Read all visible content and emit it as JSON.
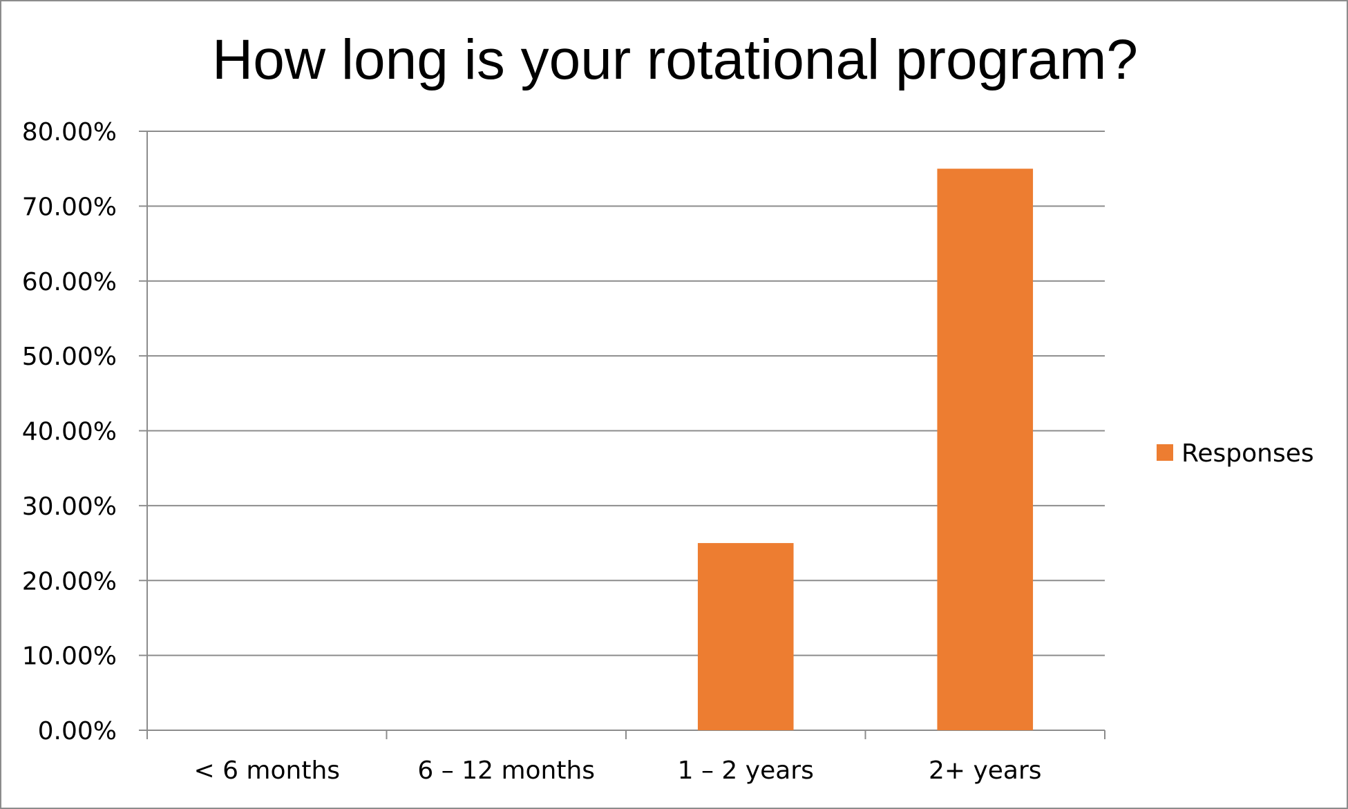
{
  "chart_data": {
    "type": "bar",
    "title": "How long is your rotational program?",
    "xlabel": "",
    "ylabel": "",
    "categories": [
      "< 6 months",
      "6 – 12 months",
      "1 – 2 years",
      "2+ years"
    ],
    "series": [
      {
        "name": "Responses",
        "color": "#ED7D31",
        "values": [
          0.0,
          0.0,
          0.25,
          0.75
        ]
      }
    ],
    "ylim": [
      0,
      0.8
    ],
    "yticks": [
      0,
      0.1,
      0.2,
      0.3,
      0.4,
      0.5,
      0.6,
      0.7,
      0.8
    ],
    "ytick_labels": [
      "0.00%",
      "10.00%",
      "20.00%",
      "30.00%",
      "40.00%",
      "50.00%",
      "60.00%",
      "70.00%",
      "80.00%"
    ],
    "grid": true,
    "legend_position": "right",
    "gridline_color": "#8c8c8c"
  }
}
